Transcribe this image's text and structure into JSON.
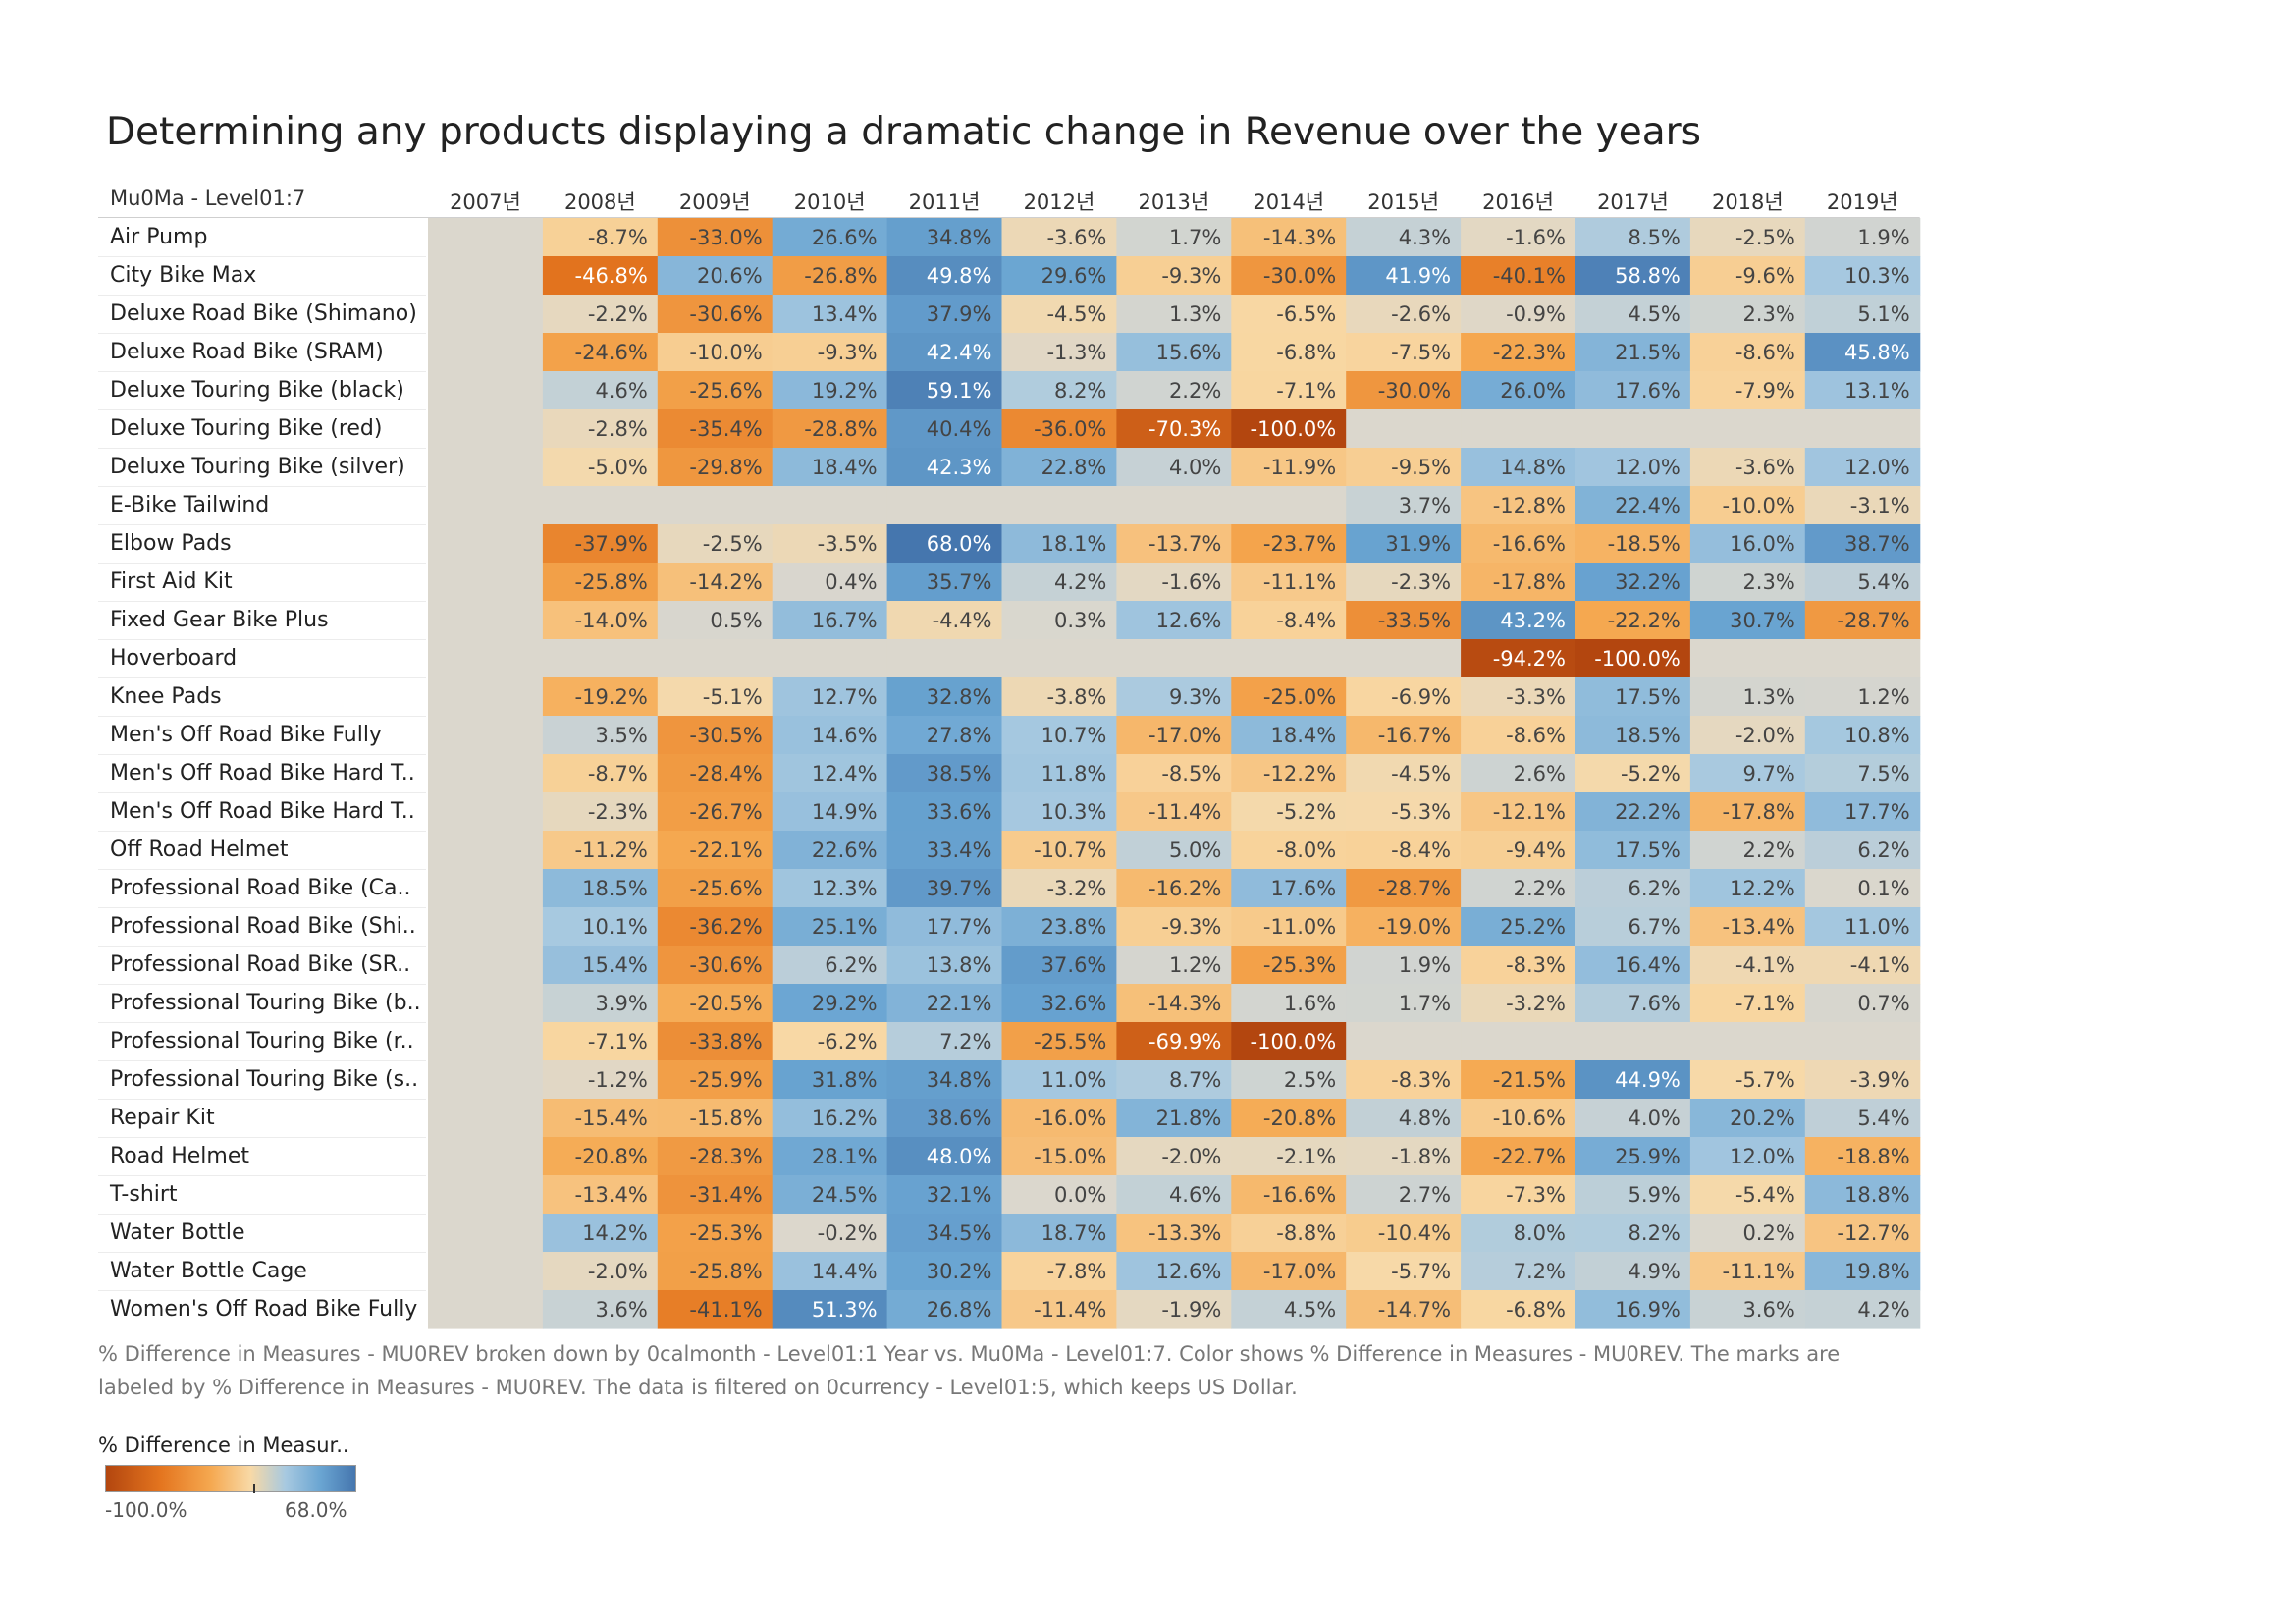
{
  "title": "Determining any products displaying a dramatic change in Revenue over the years",
  "row_header_label": "Mu0Ma - Level01:7",
  "caption_line1": "% Difference in Measures - MU0REV broken down by 0calmonth - Level01:1 Year vs. Mu0Ma - Level01:7.  Color shows % Difference in Measures - MU0REV.  The marks are",
  "caption_line2": "labeled by % Difference in Measures - MU0REV. The data is filtered on 0currency - Level01:5, which keeps US Dollar.",
  "legend": {
    "title": "% Difference in Measur..",
    "min_label": "-100.0%",
    "max_label": "68.0%",
    "min": -100.0,
    "max": 68.0,
    "colors": [
      "#b3460f",
      "#e4751f",
      "#f5a850",
      "#f8d9a6",
      "#a7c9e0",
      "#6aa5d2",
      "#4576ae"
    ]
  },
  "chart_data": {
    "type": "heatmap",
    "columns": [
      "2007년",
      "2008년",
      "2009년",
      "2010년",
      "2011년",
      "2012년",
      "2013년",
      "2014년",
      "2015년",
      "2016년",
      "2017년",
      "2018년",
      "2019년"
    ],
    "rows": [
      {
        "label": "Air Pump",
        "values": [
          null,
          -8.7,
          -33.0,
          26.6,
          34.8,
          -3.6,
          1.7,
          -14.3,
          4.3,
          -1.6,
          8.5,
          -2.5,
          1.9
        ]
      },
      {
        "label": "City Bike Max",
        "values": [
          null,
          -46.8,
          20.6,
          -26.8,
          49.8,
          29.6,
          -9.3,
          -30.0,
          41.9,
          -40.1,
          58.8,
          -9.6,
          10.3
        ]
      },
      {
        "label": "Deluxe Road Bike (Shimano)",
        "values": [
          null,
          -2.2,
          -30.6,
          13.4,
          37.9,
          -4.5,
          1.3,
          -6.5,
          -2.6,
          -0.9,
          4.5,
          2.3,
          5.1
        ]
      },
      {
        "label": "Deluxe Road Bike (SRAM)",
        "values": [
          null,
          -24.6,
          -10.0,
          -9.3,
          42.4,
          -1.3,
          15.6,
          -6.8,
          -7.5,
          -22.3,
          21.5,
          -8.6,
          45.8
        ]
      },
      {
        "label": "Deluxe Touring Bike (black)",
        "values": [
          null,
          4.6,
          -25.6,
          19.2,
          59.1,
          8.2,
          2.2,
          -7.1,
          -30.0,
          26.0,
          17.6,
          -7.9,
          13.1
        ]
      },
      {
        "label": "Deluxe Touring Bike (red)",
        "values": [
          null,
          -2.8,
          -35.4,
          -28.8,
          40.4,
          -36.0,
          -70.3,
          -100.0,
          null,
          null,
          null,
          null,
          null
        ]
      },
      {
        "label": "Deluxe Touring Bike (silver)",
        "values": [
          null,
          -5.0,
          -29.8,
          18.4,
          42.3,
          22.8,
          4.0,
          -11.9,
          -9.5,
          14.8,
          12.0,
          -3.6,
          12.0
        ]
      },
      {
        "label": "E-Bike Tailwind",
        "values": [
          null,
          null,
          null,
          null,
          null,
          null,
          null,
          null,
          3.7,
          -12.8,
          22.4,
          -10.0,
          -3.1
        ]
      },
      {
        "label": "Elbow Pads",
        "values": [
          null,
          -37.9,
          -2.5,
          -3.5,
          68.0,
          18.1,
          -13.7,
          -23.7,
          31.9,
          -16.6,
          -18.5,
          16.0,
          38.7
        ]
      },
      {
        "label": "First Aid Kit",
        "values": [
          null,
          -25.8,
          -14.2,
          0.4,
          35.7,
          4.2,
          -1.6,
          -11.1,
          -2.3,
          -17.8,
          32.2,
          2.3,
          5.4
        ]
      },
      {
        "label": "Fixed Gear Bike Plus",
        "values": [
          null,
          -14.0,
          0.5,
          16.7,
          -4.4,
          0.3,
          12.6,
          -8.4,
          -33.5,
          43.2,
          -22.2,
          30.7,
          -28.7
        ]
      },
      {
        "label": "Hoverboard",
        "values": [
          null,
          null,
          null,
          null,
          null,
          null,
          null,
          null,
          null,
          -94.2,
          -100.0,
          null,
          null
        ]
      },
      {
        "label": "Knee Pads",
        "values": [
          null,
          -19.2,
          -5.1,
          12.7,
          32.8,
          -3.8,
          9.3,
          -25.0,
          -6.9,
          -3.3,
          17.5,
          1.3,
          1.2
        ]
      },
      {
        "label": "Men's Off Road Bike Fully",
        "values": [
          null,
          3.5,
          -30.5,
          14.6,
          27.8,
          10.7,
          -17.0,
          18.4,
          -16.7,
          -8.6,
          18.5,
          -2.0,
          10.8
        ]
      },
      {
        "label": "Men's Off Road Bike Hard T..",
        "values": [
          null,
          -8.7,
          -28.4,
          12.4,
          38.5,
          11.8,
          -8.5,
          -12.2,
          -4.5,
          2.6,
          -5.2,
          9.7,
          7.5
        ]
      },
      {
        "label": "Men's Off Road Bike Hard T..",
        "values": [
          null,
          -2.3,
          -26.7,
          14.9,
          33.6,
          10.3,
          -11.4,
          -5.2,
          -5.3,
          -12.1,
          22.2,
          -17.8,
          17.7
        ]
      },
      {
        "label": "Off Road Helmet",
        "values": [
          null,
          -11.2,
          -22.1,
          22.6,
          33.4,
          -10.7,
          5.0,
          -8.0,
          -8.4,
          -9.4,
          17.5,
          2.2,
          6.2
        ]
      },
      {
        "label": "Professional Road Bike (Ca..",
        "values": [
          null,
          18.5,
          -25.6,
          12.3,
          39.7,
          -3.2,
          -16.2,
          17.6,
          -28.7,
          2.2,
          6.2,
          12.2,
          0.1
        ]
      },
      {
        "label": "Professional Road Bike (Shi..",
        "values": [
          null,
          10.1,
          -36.2,
          25.1,
          17.7,
          23.8,
          -9.3,
          -11.0,
          -19.0,
          25.2,
          6.7,
          -13.4,
          11.0
        ]
      },
      {
        "label": "Professional Road Bike (SR..",
        "values": [
          null,
          15.4,
          -30.6,
          6.2,
          13.8,
          37.6,
          1.2,
          -25.3,
          1.9,
          -8.3,
          16.4,
          -4.1,
          -4.1
        ]
      },
      {
        "label": "Professional Touring Bike (b..",
        "values": [
          null,
          3.9,
          -20.5,
          29.2,
          22.1,
          32.6,
          -14.3,
          1.6,
          1.7,
          -3.2,
          7.6,
          -7.1,
          0.7
        ]
      },
      {
        "label": "Professional Touring Bike (r..",
        "values": [
          null,
          -7.1,
          -33.8,
          -6.2,
          7.2,
          -25.5,
          -69.9,
          -100.0,
          null,
          null,
          null,
          null,
          null
        ]
      },
      {
        "label": "Professional Touring Bike (s..",
        "values": [
          null,
          -1.2,
          -25.9,
          31.8,
          34.8,
          11.0,
          8.7,
          2.5,
          -8.3,
          -21.5,
          44.9,
          -5.7,
          -3.9
        ]
      },
      {
        "label": "Repair Kit",
        "values": [
          null,
          -15.4,
          -15.8,
          16.2,
          38.6,
          -16.0,
          21.8,
          -20.8,
          4.8,
          -10.6,
          4.0,
          20.2,
          5.4
        ]
      },
      {
        "label": "Road Helmet",
        "values": [
          null,
          -20.8,
          -28.3,
          28.1,
          48.0,
          -15.0,
          -2.0,
          -2.1,
          -1.8,
          -22.7,
          25.9,
          12.0,
          -18.8
        ]
      },
      {
        "label": "T-shirt",
        "values": [
          null,
          -13.4,
          -31.4,
          24.5,
          32.1,
          0.0,
          4.6,
          -16.6,
          2.7,
          -7.3,
          5.9,
          -5.4,
          18.8
        ]
      },
      {
        "label": "Water Bottle",
        "values": [
          null,
          14.2,
          -25.3,
          -0.2,
          34.5,
          18.7,
          -13.3,
          -8.8,
          -10.4,
          8.0,
          8.2,
          0.2,
          -12.7
        ]
      },
      {
        "label": "Water Bottle Cage",
        "values": [
          null,
          -2.0,
          -25.8,
          14.4,
          30.2,
          -7.8,
          12.6,
          -17.0,
          -5.7,
          7.2,
          4.9,
          -11.1,
          19.8
        ]
      },
      {
        "label": "Women's Off Road Bike Fully",
        "values": [
          null,
          3.6,
          -41.1,
          51.3,
          26.8,
          -11.4,
          -1.9,
          4.5,
          -14.7,
          -6.8,
          16.9,
          3.6,
          4.2
        ]
      }
    ]
  }
}
